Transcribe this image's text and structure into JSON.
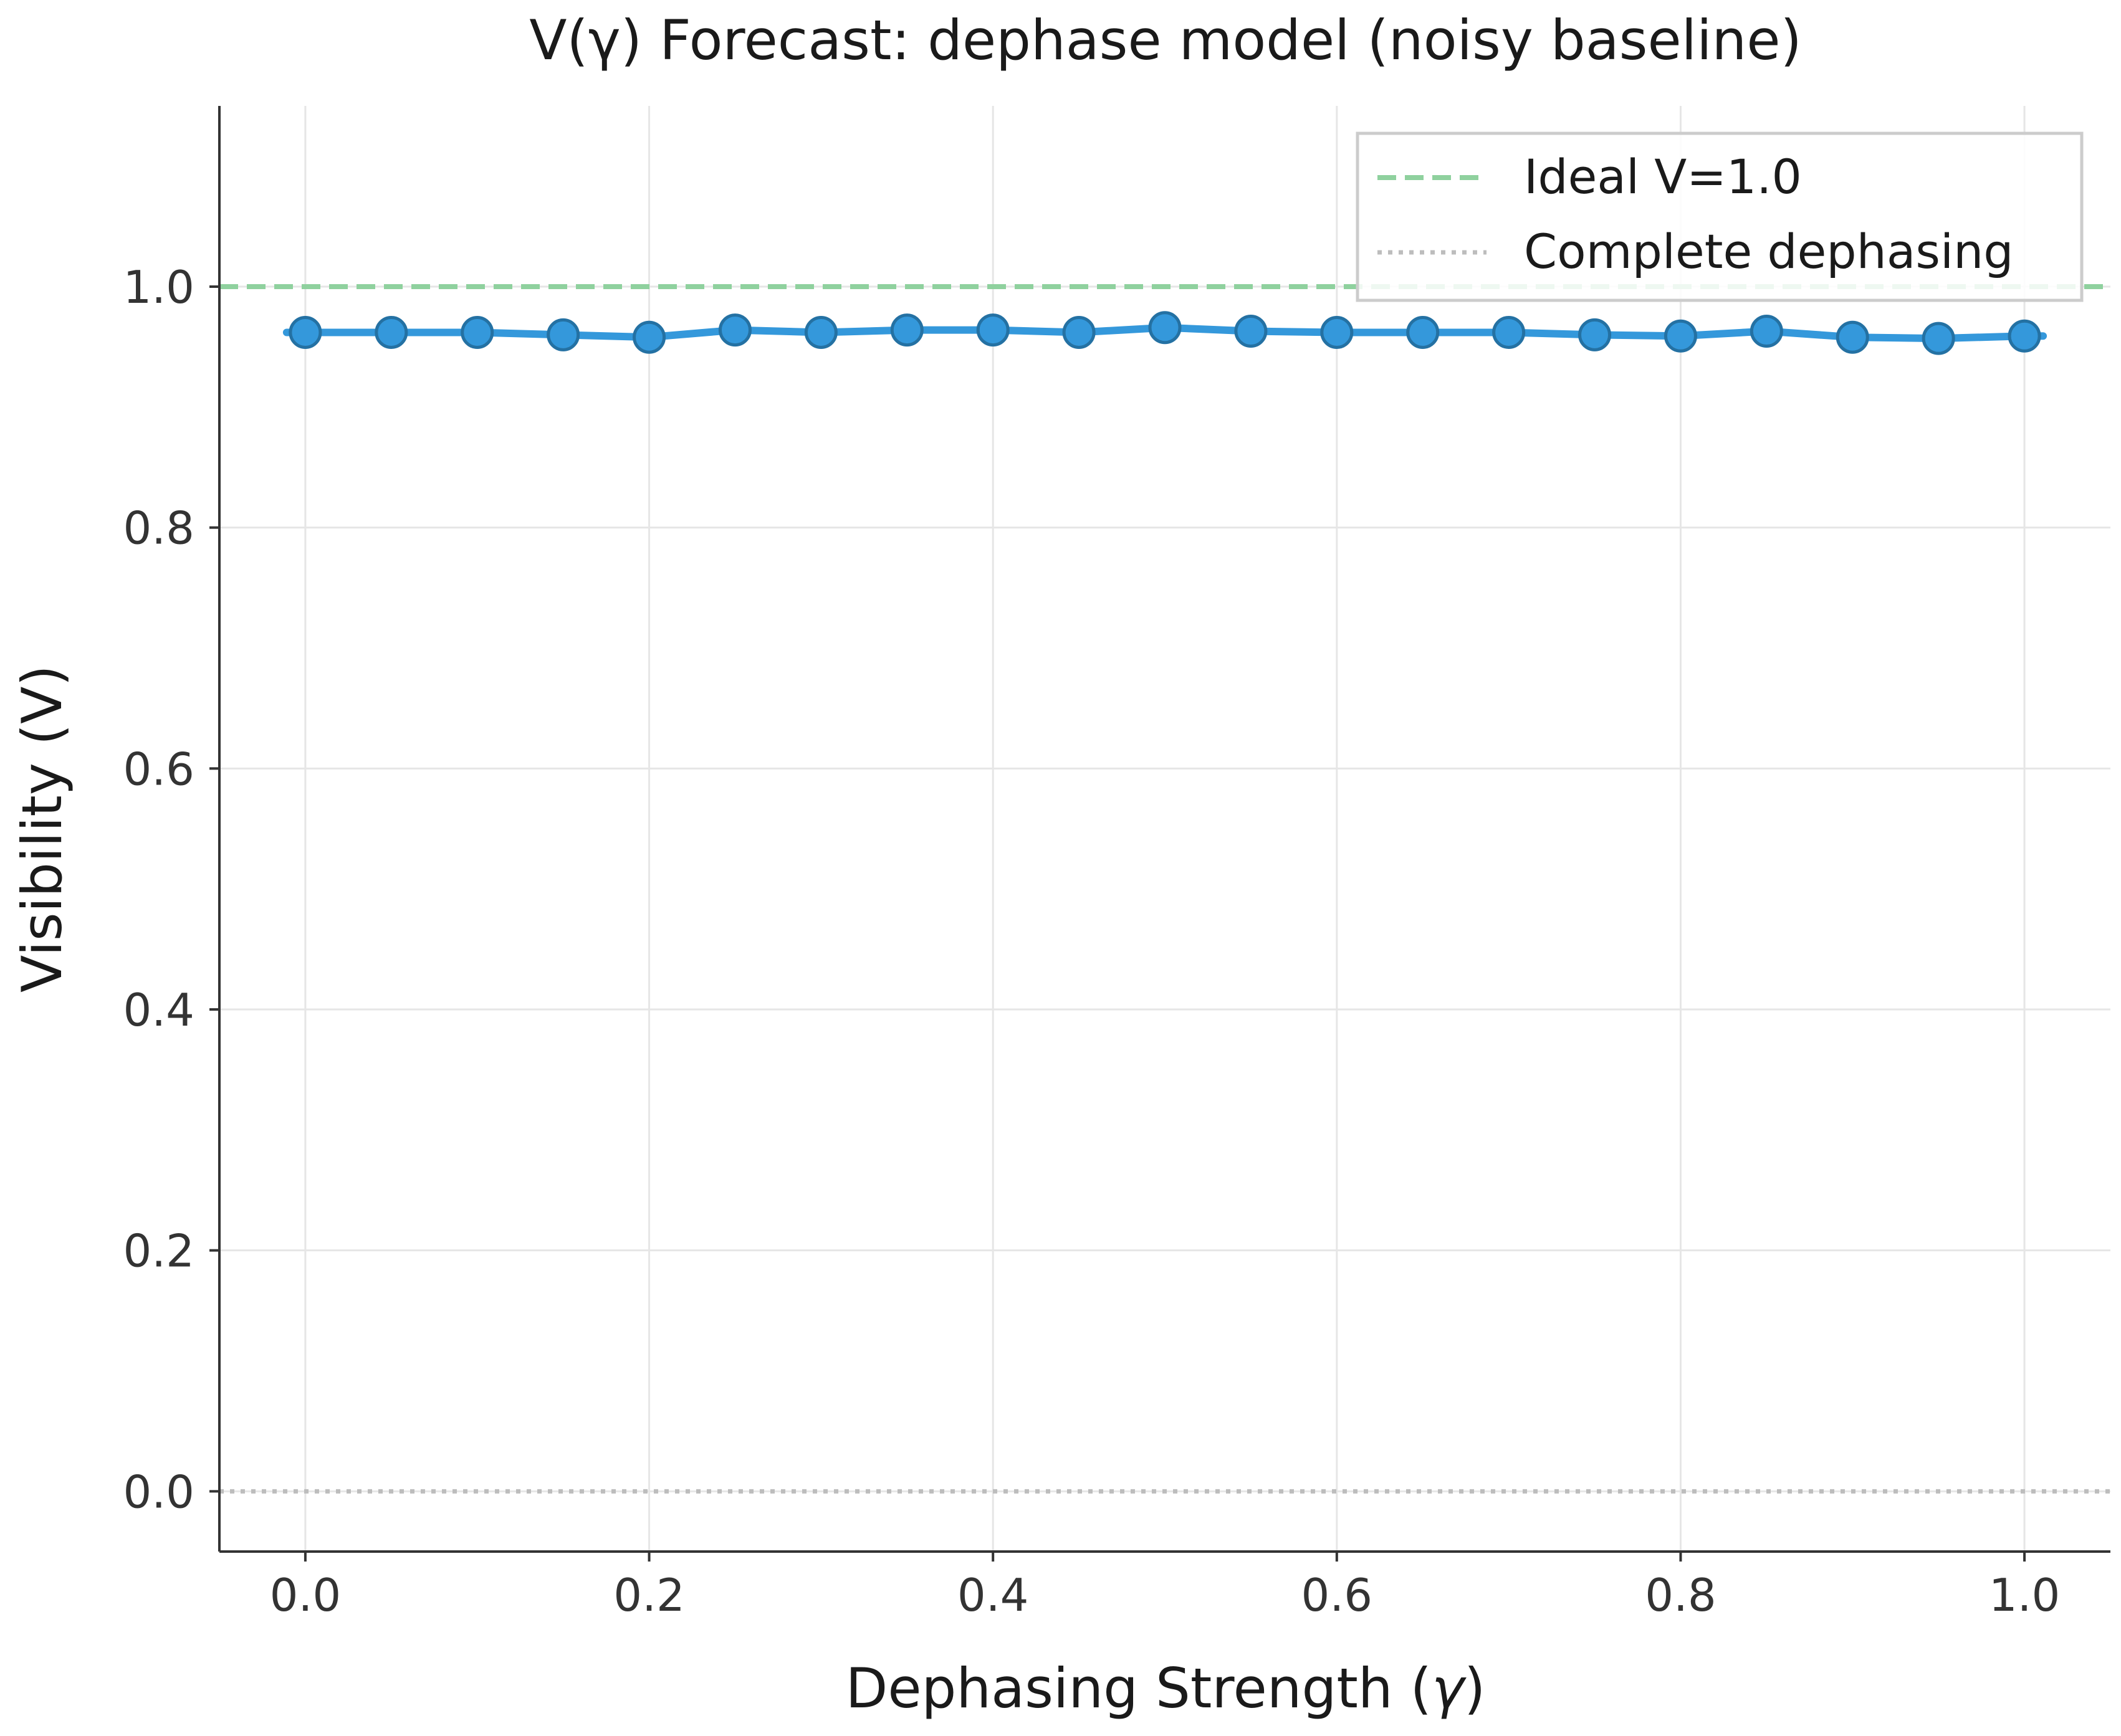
{
  "chart_data": {
    "type": "line",
    "title": "V(γ) Forecast: dephase model (noisy baseline)",
    "xlabel_prefix": "Dephasing Strength (",
    "xlabel_symbol": "γ",
    "xlabel_suffix": ")",
    "ylabel": "Visibility (V)",
    "xlim": [
      -0.05,
      1.05
    ],
    "ylim": [
      -0.05,
      1.15
    ],
    "x_ticks": [
      0.0,
      0.2,
      0.4,
      0.6,
      0.8,
      1.0
    ],
    "x_tick_labels": [
      "0.0",
      "0.2",
      "0.4",
      "0.6",
      "0.8",
      "1.0"
    ],
    "y_ticks": [
      0.0,
      0.2,
      0.4,
      0.6,
      0.8,
      1.0
    ],
    "y_tick_labels": [
      "0.0",
      "0.2",
      "0.4",
      "0.6",
      "0.8",
      "1.0"
    ],
    "grid": true,
    "legend_position": "top-right",
    "series": [
      {
        "name": "Visibility",
        "color": "#3498db",
        "edge_color": "#2471a3",
        "x": [
          0.0,
          0.05,
          0.1,
          0.15,
          0.2,
          0.25,
          0.3,
          0.35,
          0.4,
          0.45,
          0.5,
          0.55,
          0.6,
          0.65,
          0.7,
          0.75,
          0.8,
          0.85,
          0.9,
          0.95,
          1.0
        ],
        "values": [
          0.962,
          0.962,
          0.962,
          0.96,
          0.958,
          0.964,
          0.962,
          0.964,
          0.964,
          0.962,
          0.966,
          0.963,
          0.962,
          0.962,
          0.962,
          0.96,
          0.959,
          0.963,
          0.958,
          0.957,
          0.959
        ]
      }
    ],
    "reference_lines": [
      {
        "name": "Ideal V=1.0",
        "y": 1.0,
        "style": "dashed",
        "color": "#8fd19e"
      },
      {
        "name": "Complete dephasing",
        "y": 0.0,
        "style": "dotted",
        "color": "#bdbdbd"
      }
    ],
    "legend": [
      "Ideal V=1.0",
      "Complete dephasing"
    ]
  }
}
